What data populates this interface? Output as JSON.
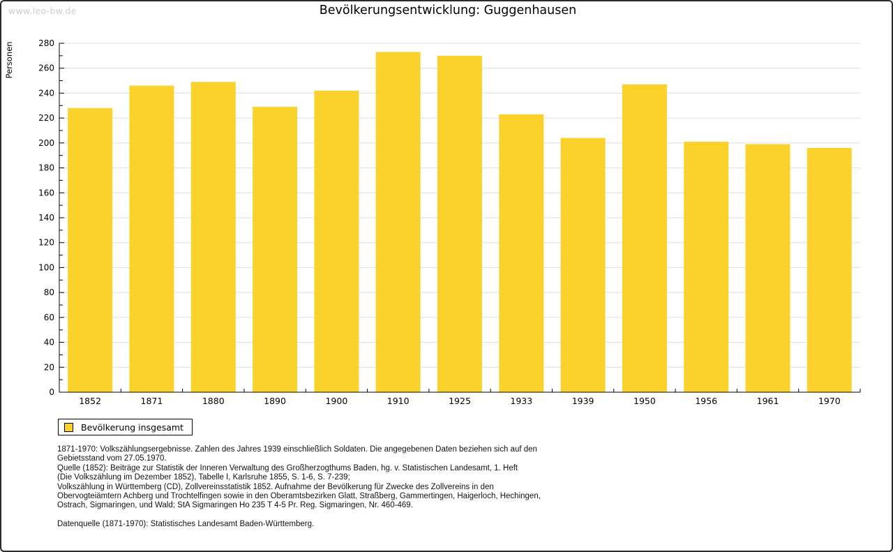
{
  "watermark": "www.leo-bw.de",
  "header": {
    "title": "Bevölkerungsentwicklung: Guggenhausen"
  },
  "chart_data": {
    "type": "bar",
    "title": "Bevölkerungsentwicklung: Guggenhausen",
    "xlabel": "",
    "ylabel": "Personen",
    "categories": [
      "1852",
      "1871",
      "1880",
      "1890",
      "1900",
      "1910",
      "1925",
      "1933",
      "1939",
      "1950",
      "1956",
      "1961",
      "1970"
    ],
    "values": [
      228,
      246,
      249,
      229,
      242,
      273,
      270,
      223,
      204,
      247,
      201,
      199,
      196
    ],
    "ylim": [
      0,
      280
    ],
    "ytick_step": 20,
    "yminor_step": 10,
    "grid": true,
    "legend_position": "bottom-left",
    "series_name": "Bevölkerung insgesamt",
    "colors": {
      "bar": "#FBD22C",
      "grid": "#DEDEDE",
      "axis": "#000000",
      "tick_text": "#000000"
    }
  },
  "legend": {
    "label": "Bevölkerung insgesamt"
  },
  "footnotes": {
    "lines": [
      "1871-1970: Volkszählungsergebnisse. Zahlen des Jahres 1939 einschließlich Soldaten. Die angegebenen Daten beziehen sich auf den",
      "Gebietsstand vom 27.05.1970.",
      "Quelle (1852): Beiträge zur Statistik der Inneren Verwaltung des Großherzogthums Baden, hg. v. Statistischen Landesamt, 1. Heft",
      "(Die Volkszählung im Dezember 1852), Tabelle I, Karlsruhe 1855, S. 1-6, S. 7-239;",
      "Volkszählung in Württemberg (CD), Zollvereinsstatistik 1852. Aufnahme der Bevölkerung für Zwecke des Zollvereins in den",
      "Obervogteiämtern Achberg und Trochtelfingen sowie in den Oberamtsbezirken Glatt, Straßberg, Gammertingen, Haigerloch, Hechingen,",
      "Ostrach, Sigmaringen, und Wald; StA Sigmaringen Ho 235 T 4-5 Pr. Reg. Sigmaringen, Nr. 460-469."
    ],
    "datasource": "Datenquelle (1871-1970): Statistisches Landesamt Baden-Württemberg."
  }
}
